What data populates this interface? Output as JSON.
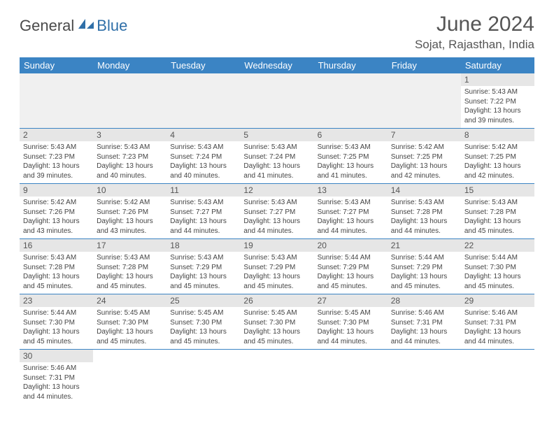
{
  "logo": {
    "part1": "General",
    "part2": "Blue"
  },
  "title": "June 2024",
  "location": "Sojat, Rajasthan, India",
  "colors": {
    "header_bg": "#3b84c4",
    "header_text": "#ffffff",
    "daynum_bg": "#e6e6e6",
    "row_border": "#3b84c4",
    "logo_blue": "#2f6fa8"
  },
  "weekdays": [
    "Sunday",
    "Monday",
    "Tuesday",
    "Wednesday",
    "Thursday",
    "Friday",
    "Saturday"
  ],
  "weeks": [
    [
      null,
      null,
      null,
      null,
      null,
      null,
      {
        "n": "1",
        "sunrise": "5:43 AM",
        "sunset": "7:22 PM",
        "daylight": "13 hours and 39 minutes."
      }
    ],
    [
      {
        "n": "2",
        "sunrise": "5:43 AM",
        "sunset": "7:23 PM",
        "daylight": "13 hours and 39 minutes."
      },
      {
        "n": "3",
        "sunrise": "5:43 AM",
        "sunset": "7:23 PM",
        "daylight": "13 hours and 40 minutes."
      },
      {
        "n": "4",
        "sunrise": "5:43 AM",
        "sunset": "7:24 PM",
        "daylight": "13 hours and 40 minutes."
      },
      {
        "n": "5",
        "sunrise": "5:43 AM",
        "sunset": "7:24 PM",
        "daylight": "13 hours and 41 minutes."
      },
      {
        "n": "6",
        "sunrise": "5:43 AM",
        "sunset": "7:25 PM",
        "daylight": "13 hours and 41 minutes."
      },
      {
        "n": "7",
        "sunrise": "5:42 AM",
        "sunset": "7:25 PM",
        "daylight": "13 hours and 42 minutes."
      },
      {
        "n": "8",
        "sunrise": "5:42 AM",
        "sunset": "7:25 PM",
        "daylight": "13 hours and 42 minutes."
      }
    ],
    [
      {
        "n": "9",
        "sunrise": "5:42 AM",
        "sunset": "7:26 PM",
        "daylight": "13 hours and 43 minutes."
      },
      {
        "n": "10",
        "sunrise": "5:42 AM",
        "sunset": "7:26 PM",
        "daylight": "13 hours and 43 minutes."
      },
      {
        "n": "11",
        "sunrise": "5:43 AM",
        "sunset": "7:27 PM",
        "daylight": "13 hours and 44 minutes."
      },
      {
        "n": "12",
        "sunrise": "5:43 AM",
        "sunset": "7:27 PM",
        "daylight": "13 hours and 44 minutes."
      },
      {
        "n": "13",
        "sunrise": "5:43 AM",
        "sunset": "7:27 PM",
        "daylight": "13 hours and 44 minutes."
      },
      {
        "n": "14",
        "sunrise": "5:43 AM",
        "sunset": "7:28 PM",
        "daylight": "13 hours and 44 minutes."
      },
      {
        "n": "15",
        "sunrise": "5:43 AM",
        "sunset": "7:28 PM",
        "daylight": "13 hours and 45 minutes."
      }
    ],
    [
      {
        "n": "16",
        "sunrise": "5:43 AM",
        "sunset": "7:28 PM",
        "daylight": "13 hours and 45 minutes."
      },
      {
        "n": "17",
        "sunrise": "5:43 AM",
        "sunset": "7:28 PM",
        "daylight": "13 hours and 45 minutes."
      },
      {
        "n": "18",
        "sunrise": "5:43 AM",
        "sunset": "7:29 PM",
        "daylight": "13 hours and 45 minutes."
      },
      {
        "n": "19",
        "sunrise": "5:43 AM",
        "sunset": "7:29 PM",
        "daylight": "13 hours and 45 minutes."
      },
      {
        "n": "20",
        "sunrise": "5:44 AM",
        "sunset": "7:29 PM",
        "daylight": "13 hours and 45 minutes."
      },
      {
        "n": "21",
        "sunrise": "5:44 AM",
        "sunset": "7:29 PM",
        "daylight": "13 hours and 45 minutes."
      },
      {
        "n": "22",
        "sunrise": "5:44 AM",
        "sunset": "7:30 PM",
        "daylight": "13 hours and 45 minutes."
      }
    ],
    [
      {
        "n": "23",
        "sunrise": "5:44 AM",
        "sunset": "7:30 PM",
        "daylight": "13 hours and 45 minutes."
      },
      {
        "n": "24",
        "sunrise": "5:45 AM",
        "sunset": "7:30 PM",
        "daylight": "13 hours and 45 minutes."
      },
      {
        "n": "25",
        "sunrise": "5:45 AM",
        "sunset": "7:30 PM",
        "daylight": "13 hours and 45 minutes."
      },
      {
        "n": "26",
        "sunrise": "5:45 AM",
        "sunset": "7:30 PM",
        "daylight": "13 hours and 45 minutes."
      },
      {
        "n": "27",
        "sunrise": "5:45 AM",
        "sunset": "7:30 PM",
        "daylight": "13 hours and 44 minutes."
      },
      {
        "n": "28",
        "sunrise": "5:46 AM",
        "sunset": "7:31 PM",
        "daylight": "13 hours and 44 minutes."
      },
      {
        "n": "29",
        "sunrise": "5:46 AM",
        "sunset": "7:31 PM",
        "daylight": "13 hours and 44 minutes."
      }
    ],
    [
      {
        "n": "30",
        "sunrise": "5:46 AM",
        "sunset": "7:31 PM",
        "daylight": "13 hours and 44 minutes."
      },
      null,
      null,
      null,
      null,
      null,
      null
    ]
  ],
  "labels": {
    "sunrise": "Sunrise:",
    "sunset": "Sunset:",
    "daylight": "Daylight:"
  }
}
